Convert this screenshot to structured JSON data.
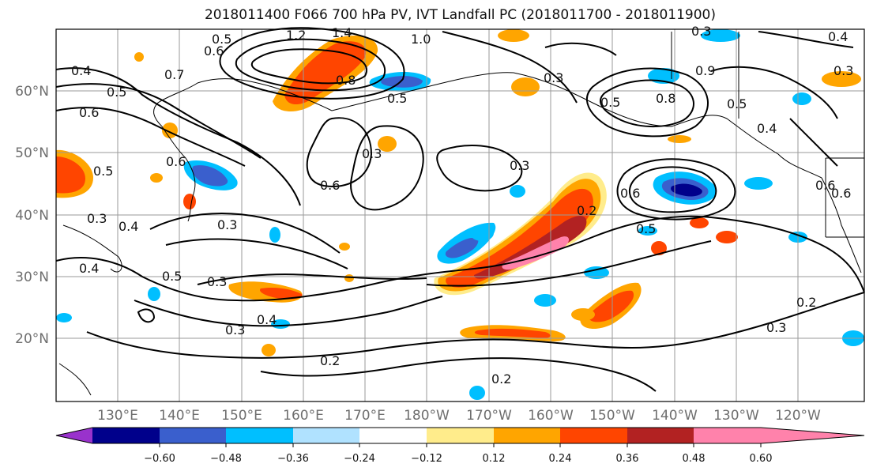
{
  "title": "2018011400 F066 700 hPa PV, IVT Landfall PC (2018011700 - 2018011900)",
  "lat_labels": [
    "60°N",
    "50°N",
    "40°N",
    "30°N",
    "20°N"
  ],
  "lon_labels": [
    "130°E",
    "140°E",
    "150°E",
    "160°E",
    "170°E",
    "180°W",
    "170°W",
    "160°W",
    "150°W",
    "140°W",
    "130°W",
    "120°W"
  ],
  "colorbar": {
    "colors": [
      "#9932cc",
      "#00008b",
      "#3a5fcd",
      "#00bfff",
      "#b0e2ff",
      "#ffffff",
      "#ffec8b",
      "#ffa500",
      "#ff4500",
      "#b22222",
      "#ff82ab"
    ],
    "ticks": [
      "−0.60",
      "−0.48",
      "−0.36",
      "−0.24",
      "−0.12",
      "0.12",
      "0.24",
      "0.36",
      "0.48",
      "0.60"
    ]
  },
  "contour_labels": [
    "0.4",
    "0.5",
    "0.6",
    "0.5",
    "0.3",
    "0.4",
    "0.4",
    "0.5",
    "0.6",
    "0.3",
    "0.3",
    "0.6",
    "0.5",
    "0.6",
    "0.7",
    "1.2",
    "1.4",
    "0.8",
    "0.5",
    "1.0",
    "0.3",
    "0.3",
    "0.3",
    "0.5",
    "0.2",
    "0.3",
    "0.4",
    "0.2",
    "0.2",
    "0.3",
    "0.2",
    "0.3",
    "0.6",
    "0.8",
    "0.9",
    "0.5",
    "0.4",
    "0.4",
    "0.3",
    "0.5",
    "0.6",
    "0.6"
  ],
  "legend_colors": {
    "contour": "#000000",
    "coast": "#000000",
    "grid": "#9a9a9a"
  }
}
